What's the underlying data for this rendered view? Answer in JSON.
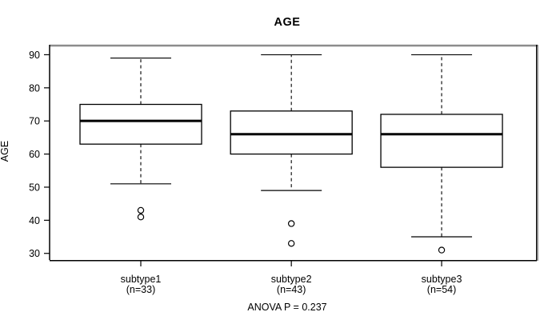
{
  "colors": {
    "stroke": "#000000",
    "frame_shadow": "#8c8c8c",
    "frame_shadow_light": "#aaaaaa",
    "background": "#ffffff",
    "text": "#000000"
  },
  "chart_data": {
    "type": "boxplot",
    "title": "AGE",
    "ylabel": "AGE",
    "xlabel": "",
    "annotation": "ANOVA P = 0.237",
    "ylim": [
      28,
      93
    ],
    "yticks": [
      30,
      40,
      50,
      60,
      70,
      80,
      90
    ],
    "grid": false,
    "groups": [
      {
        "label": "subtype1",
        "sublabel": "(n=33)",
        "n": 33,
        "whisker_low": 51,
        "q1": 63,
        "median": 70,
        "q3": 75,
        "whisker_high": 89,
        "outliers": [
          43,
          41
        ]
      },
      {
        "label": "subtype2",
        "sublabel": "(n=43)",
        "n": 43,
        "whisker_low": 49,
        "q1": 60,
        "median": 66,
        "q3": 73,
        "whisker_high": 90,
        "outliers": [
          39,
          33
        ]
      },
      {
        "label": "subtype3",
        "sublabel": "(n=54)",
        "n": 54,
        "whisker_low": 35,
        "q1": 56,
        "median": 66,
        "q3": 72,
        "whisker_high": 90,
        "outliers": [
          31
        ]
      }
    ]
  }
}
